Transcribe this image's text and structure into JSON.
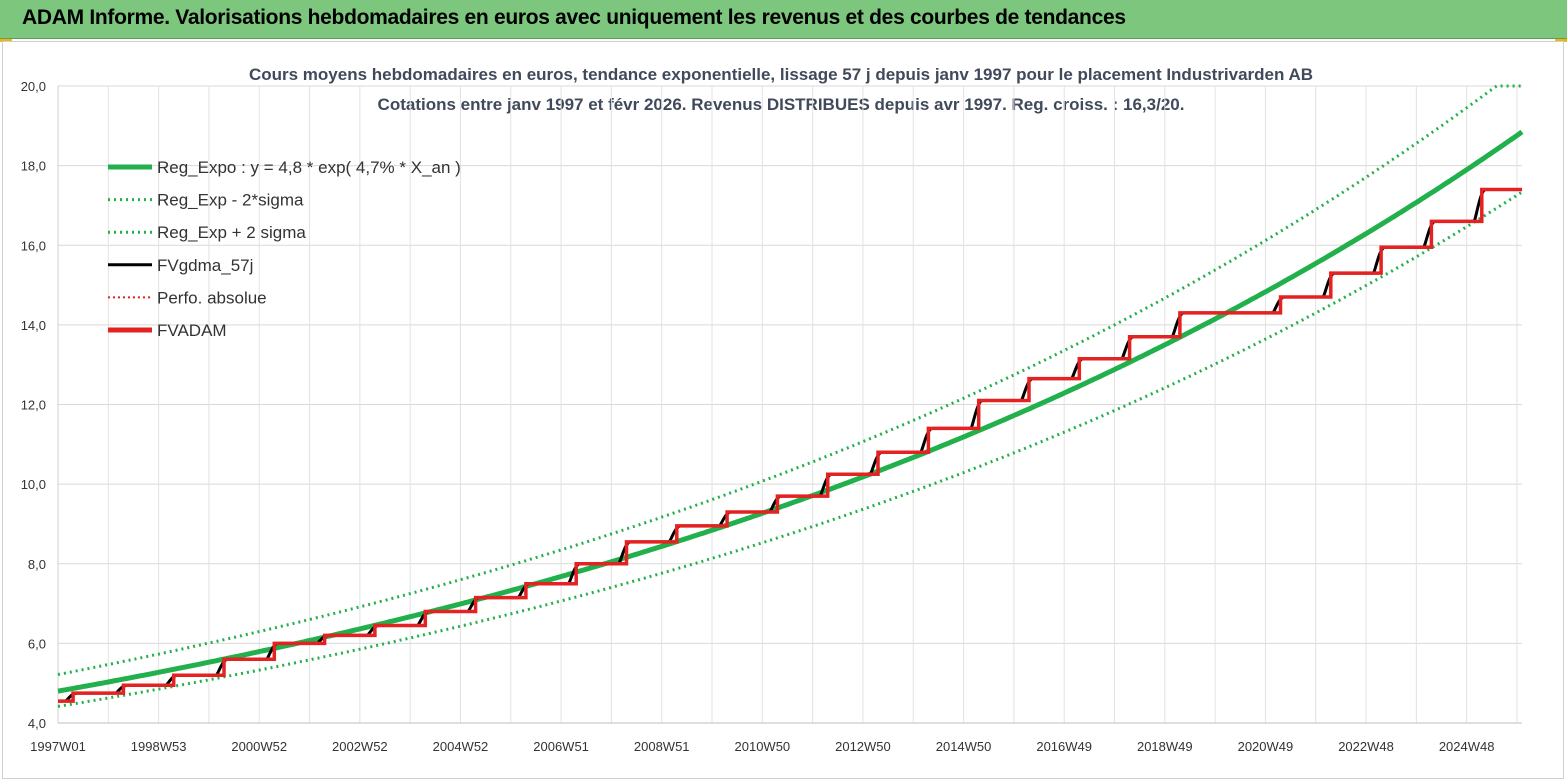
{
  "header": {
    "title": "ADAM Informe. Valorisations hebdomadaires en euros avec uniquement les revenus et des courbes de tendances",
    "background": "#7dc67e"
  },
  "chart_data": {
    "type": "line",
    "title_lines": [
      "Cours moyens hebdomadaires en euros, tendance exponentielle, lissage 57 j depuis janv 1997 pour le placement Industrivarden AB",
      "Cotations entre janv 1997 et févr 2026. Revenus DISTRIBUES depuis avr 1997. Reg. croiss. : 16,3/20."
    ],
    "xlabel": "",
    "ylabel": "",
    "ylim": [
      4.0,
      20.0
    ],
    "xlim": [
      1997.0,
      2026.1
    ],
    "y_ticks": [
      "4,0",
      "6,0",
      "8,0",
      "10,0",
      "12,0",
      "14,0",
      "16,0",
      "18,0",
      "20,0"
    ],
    "x_ticks": [
      {
        "label": "1997W01",
        "year": 1997.0
      },
      {
        "label": "1998W53",
        "year": 1999.0
      },
      {
        "label": "2000W52",
        "year": 2001.0
      },
      {
        "label": "2002W52",
        "year": 2003.0
      },
      {
        "label": "2004W52",
        "year": 2005.0
      },
      {
        "label": "2006W51",
        "year": 2007.0
      },
      {
        "label": "2008W51",
        "year": 2009.0
      },
      {
        "label": "2010W50",
        "year": 2011.0
      },
      {
        "label": "2012W50",
        "year": 2013.0
      },
      {
        "label": "2014W50",
        "year": 2015.0
      },
      {
        "label": "2016W49",
        "year": 2017.0
      },
      {
        "label": "2018W49",
        "year": 2019.0
      },
      {
        "label": "2020W49",
        "year": 2021.0
      },
      {
        "label": "2022W48",
        "year": 2023.0
      },
      {
        "label": "2024W48",
        "year": 2025.0
      }
    ],
    "grid": true,
    "legend_position": "top-left",
    "regression": {
      "a": 4.8,
      "rate": 0.047,
      "x0": 1997.0,
      "sigma_factor": 0.92
    },
    "series": [
      {
        "name": "Reg_Expo : y = 4,8 * exp( 4,7% *  X_an )",
        "color": "#22b04c",
        "style": "solid-thick"
      },
      {
        "name": "Reg_Exp - 2*sigma",
        "color": "#22b04c",
        "style": "dotted"
      },
      {
        "name": "Reg_Exp + 2 sigma",
        "color": "#22b04c",
        "style": "dotted"
      },
      {
        "name": "FVgdma_57j",
        "color": "#000000",
        "style": "solid"
      },
      {
        "name": "Perfo. absolue",
        "color": "#e02020",
        "style": "dotted-thin"
      },
      {
        "name": "FVADAM",
        "color": "#e52222",
        "style": "solid-thick"
      }
    ],
    "fvadam_steps": {
      "years": [
        1997.0,
        1997.3,
        1998.3,
        1999.3,
        2000.3,
        2001.3,
        2002.3,
        2003.3,
        2004.3,
        2005.3,
        2006.3,
        2007.3,
        2008.3,
        2009.3,
        2010.3,
        2011.3,
        2012.3,
        2013.3,
        2014.3,
        2015.3,
        2016.3,
        2017.3,
        2018.3,
        2019.3,
        2021.3,
        2022.3,
        2023.3,
        2024.3,
        2025.3
      ],
      "values": [
        4.55,
        4.75,
        4.95,
        5.2,
        5.6,
        6.0,
        6.2,
        6.45,
        6.8,
        7.15,
        7.5,
        8.0,
        8.55,
        8.95,
        9.3,
        9.7,
        10.25,
        10.8,
        11.4,
        12.1,
        12.65,
        13.15,
        13.7,
        14.3,
        14.7,
        15.3,
        15.95,
        16.6,
        17.4
      ]
    }
  }
}
